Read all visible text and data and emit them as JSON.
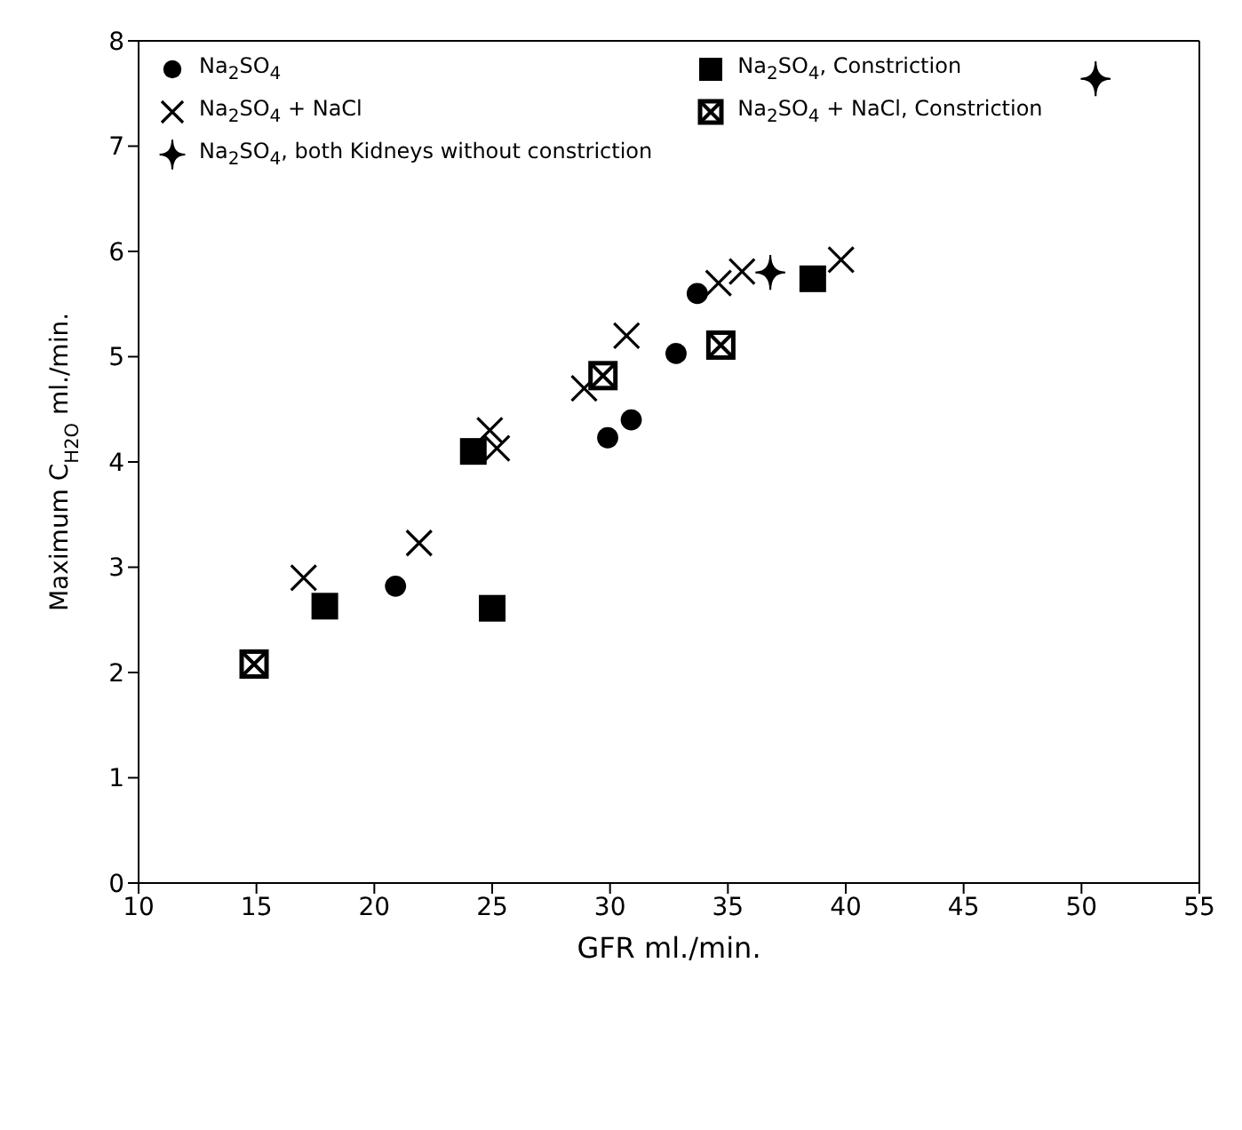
{
  "chart_data": {
    "type": "scatter",
    "xlabel": "GFR ml./min.",
    "ylabel": "Maximum C$_{H2O}$ ml./min.",
    "xlim": [
      10,
      55
    ],
    "xticks": [
      10,
      15,
      20,
      25,
      30,
      35,
      40,
      45,
      50,
      55
    ],
    "ylim": [
      0,
      8
    ],
    "yticks": [
      0,
      1,
      2,
      3,
      4,
      5,
      6,
      7,
      8
    ],
    "grid": false,
    "legend": "top left",
    "series": [
      {
        "name": "Na$_{2}$SO$_{4}$",
        "color": "#000000",
        "marker": "circle",
        "x": [
          20.9,
          29.9,
          30.9,
          32.8,
          33.7
        ],
        "values": [
          2.82,
          4.23,
          4.4,
          5.03,
          5.6
        ]
      },
      {
        "name": "Na$_{2}$SO$_{4}$ + NaCl",
        "color": "#000000",
        "marker": "cross",
        "x": [
          17.0,
          21.9,
          24.9,
          25.2,
          28.9,
          30.7,
          34.6,
          35.6,
          39.8
        ],
        "values": [
          2.9,
          3.23,
          4.3,
          4.13,
          4.7,
          5.2,
          5.7,
          5.81,
          5.92
        ]
      },
      {
        "name": "Na$_{2}$SO$_{4}$, both Kidneys without constriction",
        "color": "#000000",
        "marker": "star",
        "x": [
          36.8,
          50.6
        ],
        "values": [
          5.8,
          7.64
        ]
      },
      {
        "name": "Na$_{2}$SO$_{4}$, Constriction",
        "color": "#000000",
        "marker": "square",
        "x": [
          17.9,
          25.0,
          24.2,
          38.6
        ],
        "values": [
          2.63,
          2.61,
          4.1,
          5.74
        ]
      },
      {
        "name": "Na$_{2}$SO$_{4}$ + NaCl, Constriction",
        "color": "#000000",
        "marker": "square",
        "x": [
          14.9,
          29.7,
          34.7
        ],
        "values": [
          2.08,
          4.82,
          5.11
        ]
      }
    ]
  }
}
